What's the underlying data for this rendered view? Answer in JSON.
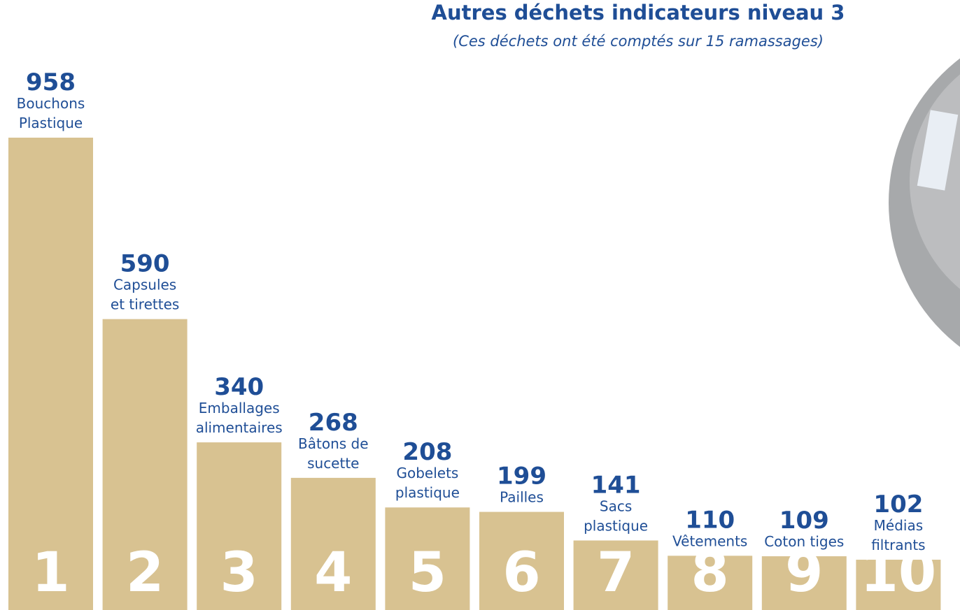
{
  "chart_data": {
    "type": "bar",
    "title": "Autres déchets indicateurs niveau 3",
    "subtitle": "(Ces déchets ont été comptés sur 15 ramassages)",
    "categories": [
      [
        "Bouchons",
        "Plastique"
      ],
      [
        "Capsules",
        "et tirettes"
      ],
      [
        "Emballages",
        "alimentaires"
      ],
      [
        "Bâtons de",
        "sucette"
      ],
      [
        "Gobelets",
        "plastique"
      ],
      [
        "Pailles"
      ],
      [
        "Sacs",
        "plastique"
      ],
      [
        "Vêtements"
      ],
      [
        "Coton tiges"
      ],
      [
        "Médias",
        "filtrants"
      ]
    ],
    "ranks": [
      "1",
      "2",
      "3",
      "4",
      "5",
      "6",
      "7",
      "8",
      "9",
      "10"
    ],
    "values": [
      958,
      590,
      340,
      268,
      208,
      199,
      141,
      110,
      109,
      102
    ],
    "color": "#d8c291"
  }
}
